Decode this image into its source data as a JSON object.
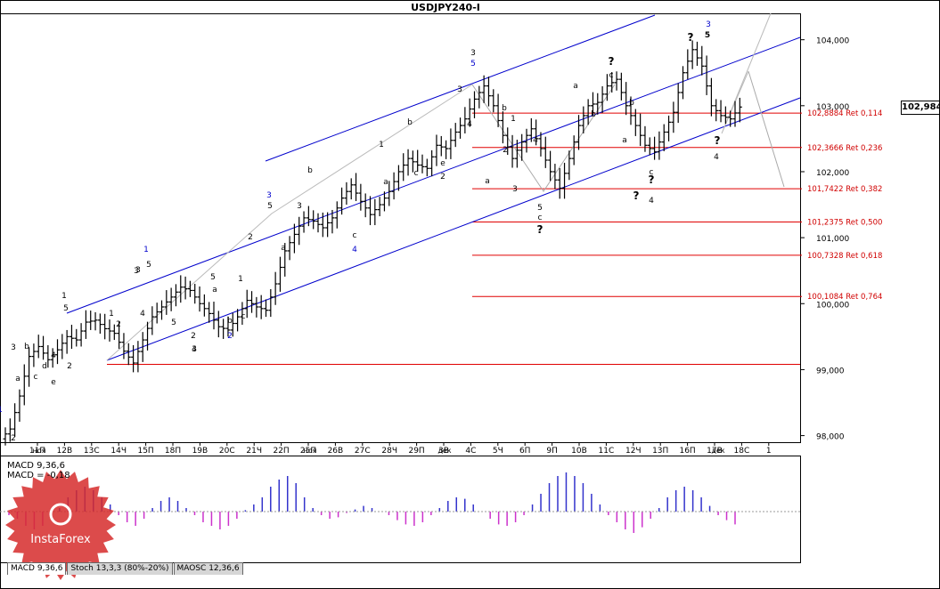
{
  "chart_title": "USDJPY240-I",
  "current_price": "102,984",
  "price_axis": [
    "104,000",
    "103,000",
    "102,000",
    "101,000",
    "100,000",
    "99,000",
    "98,000"
  ],
  "date_axis": [
    "11П",
    "12В",
    "13С",
    "14Ч",
    "15П",
    "18П",
    "19В",
    "20С",
    "21Ч",
    "22П",
    "25П",
    "26В",
    "27С",
    "28Ч",
    "29П",
    "3В",
    "4С",
    "5Ч",
    "6П",
    "9П",
    "10В",
    "11С",
    "12Ч",
    "13П",
    "16П",
    "17В",
    "18С",
    "1"
  ],
  "month_axis": [
    "ноя",
    "ноя",
    "дек",
    "дек"
  ],
  "fib_levels": [
    "102,8884 Ret 0,114",
    "102,3666 Ret 0,236",
    "101,7422 Ret 0,382",
    "101,2375 Ret 0,500",
    "100,7328 Ret 0,618",
    "100,1084 Ret 0,764"
  ],
  "indicator": {
    "macd_title": "MACD 9,36,6",
    "macd_value": "MACD = -0,18"
  },
  "tabs": [
    "MACD 9,36,6",
    "Stoch 13,3,3 (80%-20%)",
    "MAOSC 12,36,6"
  ],
  "logo_text": "InstaForex",
  "wave_labels": [
    {
      "t": "1",
      "c": "blue"
    },
    {
      "t": "2",
      "c": "black"
    },
    {
      "t": "3",
      "c": "black"
    },
    {
      "t": "a",
      "c": "black"
    },
    {
      "t": "b",
      "c": "black"
    },
    {
      "t": "c",
      "c": "black"
    },
    {
      "t": "d",
      "c": "black"
    },
    {
      "t": "e",
      "c": "black"
    },
    {
      "t": "4",
      "c": "black"
    },
    {
      "t": "1",
      "c": "black"
    },
    {
      "t": "5",
      "c": "black"
    },
    {
      "t": "2",
      "c": "black"
    },
    {
      "t": "1",
      "c": "black"
    },
    {
      "t": "2",
      "c": "black"
    },
    {
      "t": "3",
      "c": "black"
    },
    {
      "t": "4",
      "c": "black"
    },
    {
      "t": "5",
      "c": "black"
    },
    {
      "t": "1",
      "c": "blue"
    },
    {
      "t": "3",
      "c": "black"
    },
    {
      "t": "5",
      "c": "black"
    },
    {
      "t": "2",
      "c": "black"
    },
    {
      "t": "4",
      "c": "black"
    },
    {
      "t": "3",
      "c": "black"
    },
    {
      "t": "5",
      "c": "black"
    },
    {
      "t": "a",
      "c": "black"
    },
    {
      "t": "b",
      "c": "black"
    },
    {
      "t": "c",
      "c": "black"
    },
    {
      "t": "1",
      "c": "black"
    },
    {
      "t": "2",
      "c": "black"
    },
    {
      "t": "2",
      "c": "blue"
    },
    {
      "t": "3",
      "c": "blue"
    },
    {
      "t": "5",
      "c": "black"
    },
    {
      "t": "3",
      "c": "black"
    },
    {
      "t": "a",
      "c": "black"
    },
    {
      "t": "b",
      "c": "black"
    },
    {
      "t": "c",
      "c": "black"
    },
    {
      "t": "4",
      "c": "blue"
    },
    {
      "t": "1",
      "c": "black"
    },
    {
      "t": "a",
      "c": "black"
    },
    {
      "t": "b",
      "c": "black"
    },
    {
      "t": "c",
      "c": "black"
    },
    {
      "t": "e",
      "c": "black"
    },
    {
      "t": "2",
      "c": "black"
    },
    {
      "t": "3",
      "c": "black"
    },
    {
      "t": "3",
      "c": "black"
    },
    {
      "t": "5",
      "c": "blue"
    },
    {
      "t": "4",
      "c": "black"
    },
    {
      "t": "a",
      "c": "black"
    },
    {
      "t": "b",
      "c": "black"
    },
    {
      "t": "1",
      "c": "black"
    },
    {
      "t": "2",
      "c": "black"
    },
    {
      "t": "3",
      "c": "black"
    },
    {
      "t": "4",
      "c": "black"
    },
    {
      "t": "5",
      "c": "black"
    },
    {
      "t": "c",
      "c": "black"
    },
    {
      "t": "?",
      "c": "black"
    },
    {
      "t": "a",
      "c": "black"
    },
    {
      "t": "?",
      "c": "black"
    },
    {
      "t": "c",
      "c": "black"
    },
    {
      "t": "b",
      "c": "black"
    },
    {
      "t": "b",
      "c": "black"
    },
    {
      "t": "a",
      "c": "black"
    },
    {
      "t": "c",
      "c": "black"
    },
    {
      "t": "?",
      "c": "black"
    },
    {
      "t": "4",
      "c": "black"
    },
    {
      "t": "?",
      "c": "black"
    },
    {
      "t": "3",
      "c": "blue"
    },
    {
      "t": "?",
      "c": "black"
    },
    {
      "t": "5",
      "c": "black"
    },
    {
      "t": "?",
      "c": "black"
    },
    {
      "t": "4",
      "c": "black"
    }
  ],
  "chart_data": {
    "type": "candlestick",
    "symbol": "USDJPY240-I",
    "ylim": [
      97.9,
      104.4
    ],
    "x_labels": [
      "11П",
      "12В",
      "13С",
      "14Ч",
      "15П",
      "18П",
      "19В",
      "20С",
      "21Ч",
      "22П",
      "25П",
      "26В",
      "27С",
      "28Ч",
      "29П",
      "3В",
      "4С",
      "5Ч",
      "6П",
      "9П",
      "10В",
      "11С",
      "12Ч",
      "13П",
      "16П",
      "17В",
      "18С"
    ],
    "close_path": [
      98.1,
      98.6,
      99.2,
      99.35,
      99.15,
      99.3,
      99.5,
      99.45,
      99.72,
      99.75,
      99.62,
      99.55,
      99.28,
      99.1,
      99.45,
      99.8,
      99.95,
      100.1,
      100.25,
      100.2,
      100.0,
      99.85,
      99.65,
      99.6,
      99.8,
      100.05,
      99.95,
      99.9,
      100.3,
      100.8,
      101.05,
      101.3,
      101.25,
      101.15,
      101.3,
      101.6,
      101.8,
      101.55,
      101.35,
      101.5,
      101.7,
      102.0,
      102.2,
      102.1,
      102.05,
      102.4,
      102.35,
      102.6,
      102.8,
      103.1,
      103.3,
      103.0,
      102.55,
      102.2,
      102.45,
      102.65,
      102.35,
      102.0,
      101.75,
      102.2,
      102.7,
      103.0,
      103.05,
      103.3,
      103.4,
      103.0,
      102.7,
      102.4,
      102.3,
      102.6,
      102.9,
      103.5,
      103.85,
      103.6,
      103.0,
      102.85,
      102.8,
      102.98
    ],
    "fib_levels": [
      102.8884,
      102.3666,
      101.7422,
      101.2375,
      100.7328,
      100.1084
    ],
    "macd": [
      -0.05,
      -0.1,
      -0.2,
      -0.25,
      -0.2,
      -0.1,
      0.05,
      0.2,
      0.3,
      0.35,
      0.3,
      0.2,
      0.1,
      -0.05,
      -0.15,
      -0.2,
      -0.1,
      0.05,
      0.15,
      0.2,
      0.15,
      0.05,
      -0.05,
      -0.15,
      -0.2,
      -0.25,
      -0.2,
      -0.1,
      0.02,
      0.1,
      0.2,
      0.35,
      0.45,
      0.5,
      0.4,
      0.2,
      0.05,
      -0.05,
      -0.1,
      -0.08,
      -0.02,
      0.03,
      0.08,
      0.05,
      0.0,
      -0.05,
      -0.12,
      -0.18,
      -0.2,
      -0.15,
      -0.05,
      0.05,
      0.15,
      0.2,
      0.18,
      0.1,
      0.0,
      -0.1,
      -0.18,
      -0.2,
      -0.15,
      -0.05,
      0.1,
      0.25,
      0.4,
      0.5,
      0.55,
      0.5,
      0.4,
      0.25,
      0.1,
      -0.05,
      -0.15,
      -0.25,
      -0.3,
      -0.22,
      -0.1,
      0.05,
      0.2,
      0.3,
      0.35,
      0.3,
      0.2,
      0.08,
      -0.05,
      -0.12,
      -0.18
    ]
  }
}
